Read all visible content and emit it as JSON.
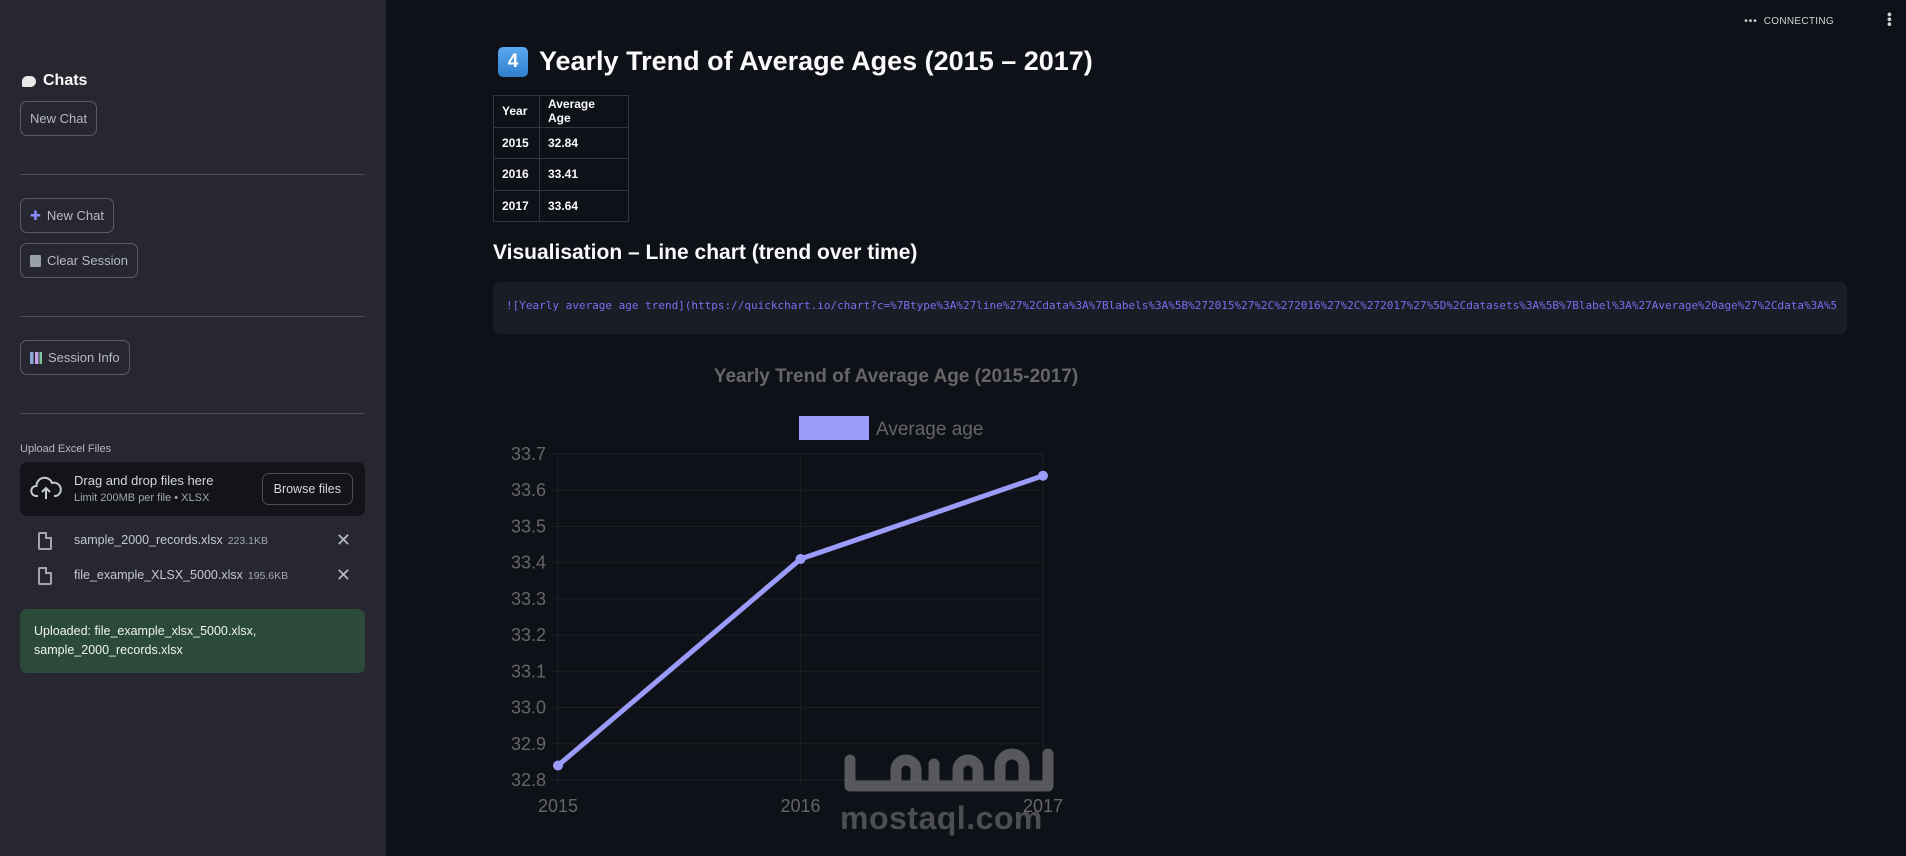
{
  "sidebar": {
    "chats_title": "Chats",
    "new_chat_top": "New Chat",
    "new_chat_label": "New Chat",
    "clear_session_label": "Clear Session",
    "session_info_label": "Session Info",
    "upload_label": "Upload Excel Files",
    "dropzone": {
      "title": "Drag and drop files here",
      "subtitle": "Limit 200MB per file • XLSX",
      "browse_label": "Browse files"
    },
    "files": [
      {
        "name": "sample_2000_records.xlsx",
        "size": "223.1KB"
      },
      {
        "name": "file_example_XLSX_5000.xlsx",
        "size": "195.6KB"
      }
    ],
    "success_message": "Uploaded: file_example_xlsx_5000.xlsx, sample_2000_records.xlsx"
  },
  "status": {
    "text": "CONNECTING"
  },
  "main": {
    "heading_number": "4",
    "heading": "Yearly Trend of Average Ages (2015 – 2017)",
    "table": {
      "headers": [
        "Year",
        "Average Age"
      ],
      "rows": [
        [
          "2015",
          "32.84"
        ],
        [
          "2016",
          "33.41"
        ],
        [
          "2017",
          "33.64"
        ]
      ]
    },
    "subheading": "Visualisation – Line chart (trend over time)",
    "code_text": "![Yearly average age trend](https://quickchart.io/chart?c=%7Btype%3A%27line%27%2Cdata%3A%7Blabels%3A%5B%272015%27%2C%272016%27%2C%272017%27%5D%2Cdatasets%3A%5B%7Blabel%3A%27Average%20age%27%2Cdata%3A%5"
  },
  "chart_data": {
    "type": "line",
    "title": "Yearly Trend of Average Age (2015-2017)",
    "categories": [
      "2015",
      "2016",
      "2017"
    ],
    "series": [
      {
        "name": "Average age",
        "values": [
          32.84,
          33.41,
          33.64
        ],
        "color": "#9b9bfa"
      }
    ],
    "ylim": [
      32.8,
      33.7
    ],
    "yticks": [
      "33.7",
      "33.6",
      "33.5",
      "33.4",
      "33.3",
      "33.2",
      "33.1",
      "33.0",
      "32.9",
      "32.8"
    ],
    "legend": "top-center",
    "grid": true
  },
  "watermark": {
    "arabic": "مستقل",
    "latin": "mostaql.com"
  },
  "colors": {
    "accent": "#9b9bfa",
    "sidebar_bg": "#262730",
    "main_bg": "#0e1117",
    "success_bg": "#2c4a3a"
  }
}
